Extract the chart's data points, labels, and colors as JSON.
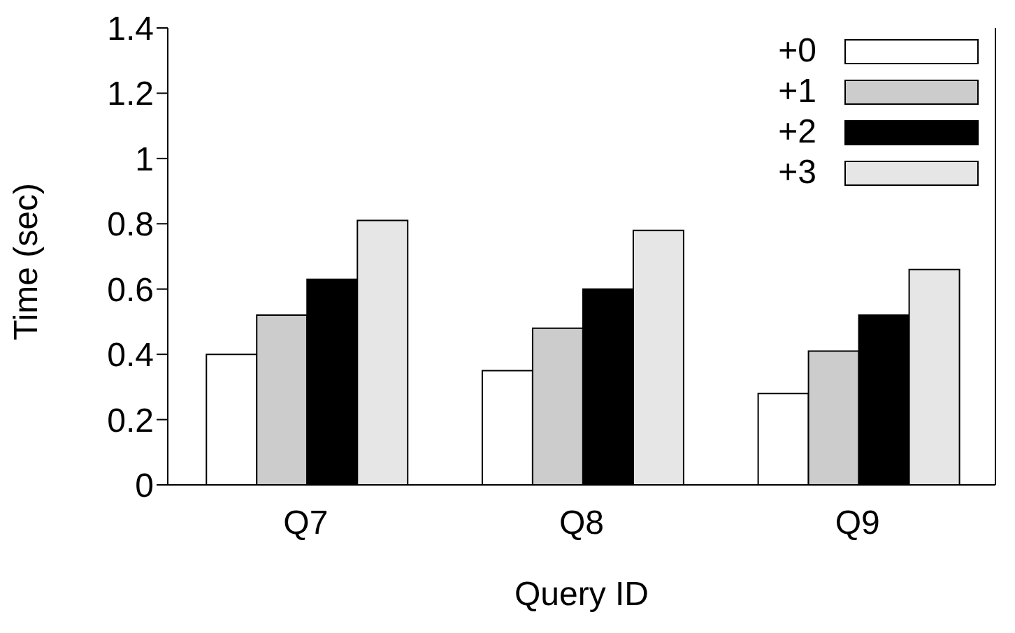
{
  "chart_data": {
    "type": "bar",
    "xlabel": "Query ID",
    "ylabel": "Time (sec)",
    "categories": [
      "Q7",
      "Q8",
      "Q9"
    ],
    "series": [
      {
        "name": "+0",
        "color": "#ffffff",
        "values": [
          0.4,
          0.35,
          0.28
        ]
      },
      {
        "name": "+1",
        "color": "#cccccc",
        "values": [
          0.52,
          0.48,
          0.41
        ]
      },
      {
        "name": "+2",
        "color": "#000000",
        "values": [
          0.63,
          0.6,
          0.52
        ]
      },
      {
        "name": "+3",
        "color": "#e6e6e6",
        "values": [
          0.81,
          0.78,
          0.66
        ]
      }
    ],
    "ylim": [
      0,
      1.4
    ],
    "yticks": [
      0,
      0.2,
      0.4,
      0.6,
      0.8,
      1,
      1.2,
      1.4
    ],
    "grid": false,
    "legend": "top right"
  }
}
